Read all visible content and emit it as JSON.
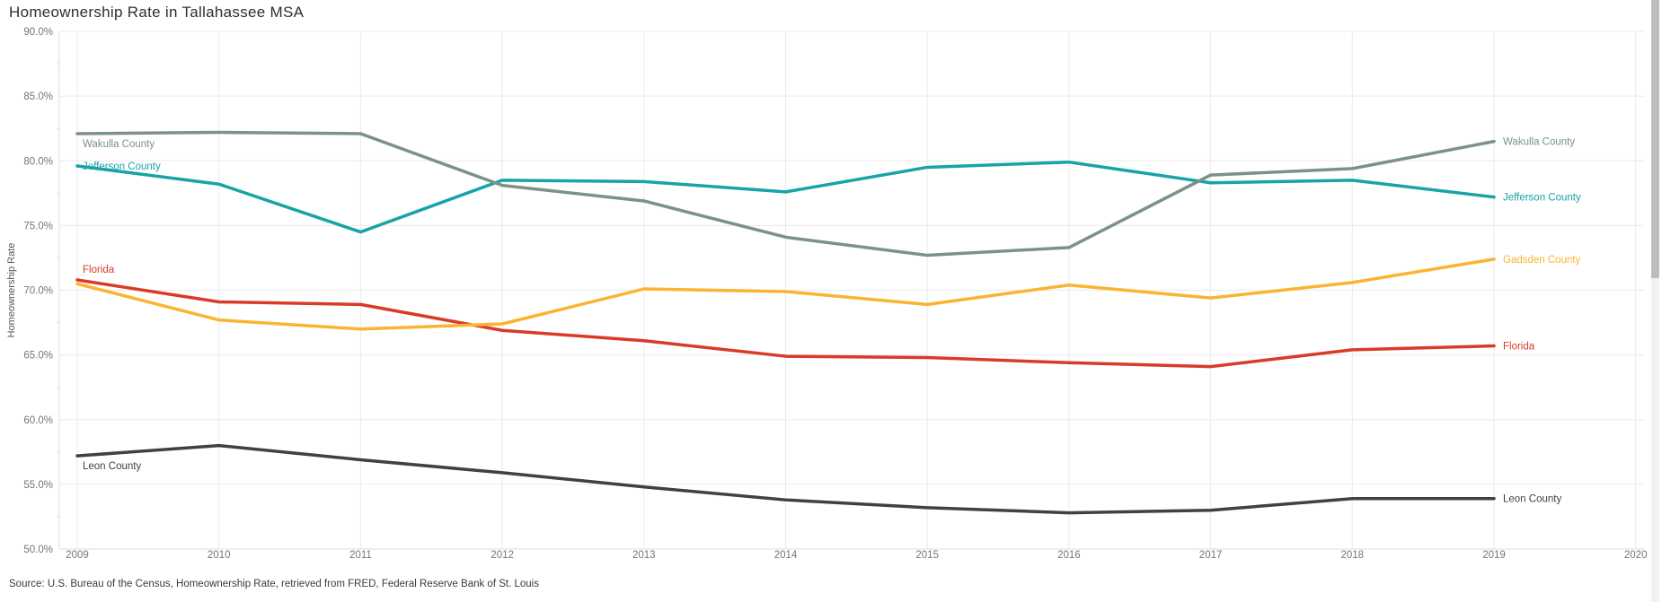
{
  "header": {
    "title": "Homeownership Rate in Tallahassee MSA"
  },
  "footer": {
    "source": "Source: U.S. Bureau of the Census, Homeownership Rate, retrieved from FRED, Federal Reserve Bank of St. Louis"
  },
  "chart_data": {
    "type": "line",
    "title": "Homeownership Rate in Tallahassee MSA",
    "xlabel": "",
    "ylabel": "Homeownership Rate",
    "grid": true,
    "legend_position": "inline line-end and line-start labels",
    "xlim": [
      2009,
      2020
    ],
    "ylim": [
      50,
      90
    ],
    "x": [
      2009,
      2010,
      2011,
      2012,
      2013,
      2014,
      2015,
      2016,
      2017,
      2018,
      2019
    ],
    "x_tick_labels": [
      "2009",
      "2010",
      "2011",
      "2012",
      "2013",
      "2014",
      "2015",
      "2016",
      "2017",
      "2018",
      "2019",
      "2020"
    ],
    "x_tick_values": [
      2009,
      2010,
      2011,
      2012,
      2013,
      2014,
      2015,
      2016,
      2017,
      2018,
      2019,
      2020
    ],
    "y_tick_labels": [
      "90.0%",
      "85.0%",
      "80.0%",
      "75.0%",
      "70.0%",
      "65.0%",
      "60.0%",
      "55.0%",
      "50.0%"
    ],
    "y_tick_values": [
      90,
      85,
      80,
      75,
      70,
      65,
      60,
      55,
      50
    ],
    "series": [
      {
        "name": "Florida",
        "color": "#D93B27",
        "start_label": "above",
        "values": [
          70.8,
          69.1,
          68.9,
          66.9,
          66.1,
          64.9,
          64.8,
          64.4,
          64.1,
          65.4,
          65.7
        ]
      },
      {
        "name": "Gadsden County",
        "color": "#FBB431",
        "start_label": null,
        "values": [
          70.5,
          67.7,
          67.0,
          67.4,
          70.1,
          69.9,
          68.9,
          70.4,
          69.4,
          70.6,
          72.4
        ]
      },
      {
        "name": "Jefferson County",
        "color": "#17A3A8",
        "start_label": "on",
        "values": [
          79.6,
          78.2,
          74.5,
          78.5,
          78.4,
          77.6,
          79.5,
          79.9,
          78.3,
          78.5,
          77.2
        ]
      },
      {
        "name": "Wakulla County",
        "color": "#7A9384",
        "start_label": "below",
        "values": [
          82.1,
          82.2,
          82.1,
          78.1,
          76.9,
          74.1,
          72.7,
          73.3,
          78.9,
          79.4,
          81.5
        ]
      },
      {
        "name": "Leon County",
        "color": "#414141",
        "start_label": "below",
        "values": [
          57.2,
          58.0,
          56.9,
          55.9,
          54.8,
          53.8,
          53.2,
          52.8,
          53.0,
          53.9,
          53.9
        ]
      }
    ]
  },
  "scrollbar": {
    "track_color": "#f1f1f1",
    "thumb_color": "#bdbdbd"
  },
  "style_colors": {
    "grid_line": "#ebebeb",
    "axis_border": "#dedede",
    "tick_label": "#757575",
    "axis_title": "#555555"
  }
}
